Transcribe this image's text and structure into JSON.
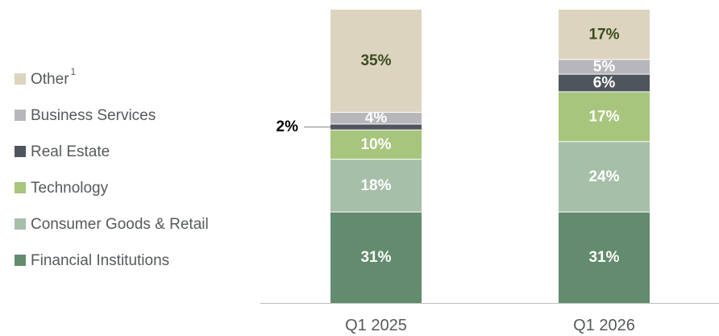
{
  "chart_data": {
    "type": "bar",
    "stacked": true,
    "categories": [
      "Q1 2025",
      "Q1 2026"
    ],
    "series": [
      {
        "name": "Financial Institutions",
        "values": [
          31,
          31
        ],
        "labels": [
          "31%",
          "31%"
        ],
        "color": "#638b6d",
        "label_color": "#ffffff"
      },
      {
        "name": "Consumer Goods & Retail",
        "values": [
          18,
          24
        ],
        "labels": [
          "18%",
          "24%"
        ],
        "color": "#a6bfa9",
        "label_color": "#ffffff"
      },
      {
        "name": "Technology",
        "values": [
          10,
          17
        ],
        "labels": [
          "10%",
          "17%"
        ],
        "color": "#a8c57d",
        "label_color": "#ffffff"
      },
      {
        "name": "Real Estate",
        "values": [
          2,
          6
        ],
        "labels": [
          "",
          "6%"
        ],
        "color": "#4e555c",
        "label_color": "#ffffff"
      },
      {
        "name": "Business Services",
        "values": [
          4,
          5
        ],
        "labels": [
          "4%",
          "5%"
        ],
        "color": "#b7b7bb",
        "label_color": "#ffffff"
      },
      {
        "name": "Other",
        "name_superscript": "1",
        "values": [
          35,
          17
        ],
        "labels": [
          "35%",
          "17%"
        ],
        "color": "#ddd4c0",
        "label_color": "#3a4d1e"
      }
    ],
    "callouts": [
      {
        "category": "Q1 2025",
        "series": "Real Estate",
        "text": "2%"
      }
    ],
    "ylim": [
      0,
      100
    ],
    "grid": false,
    "legend_position": "left",
    "title": "",
    "xlabel": "",
    "ylabel": ""
  }
}
